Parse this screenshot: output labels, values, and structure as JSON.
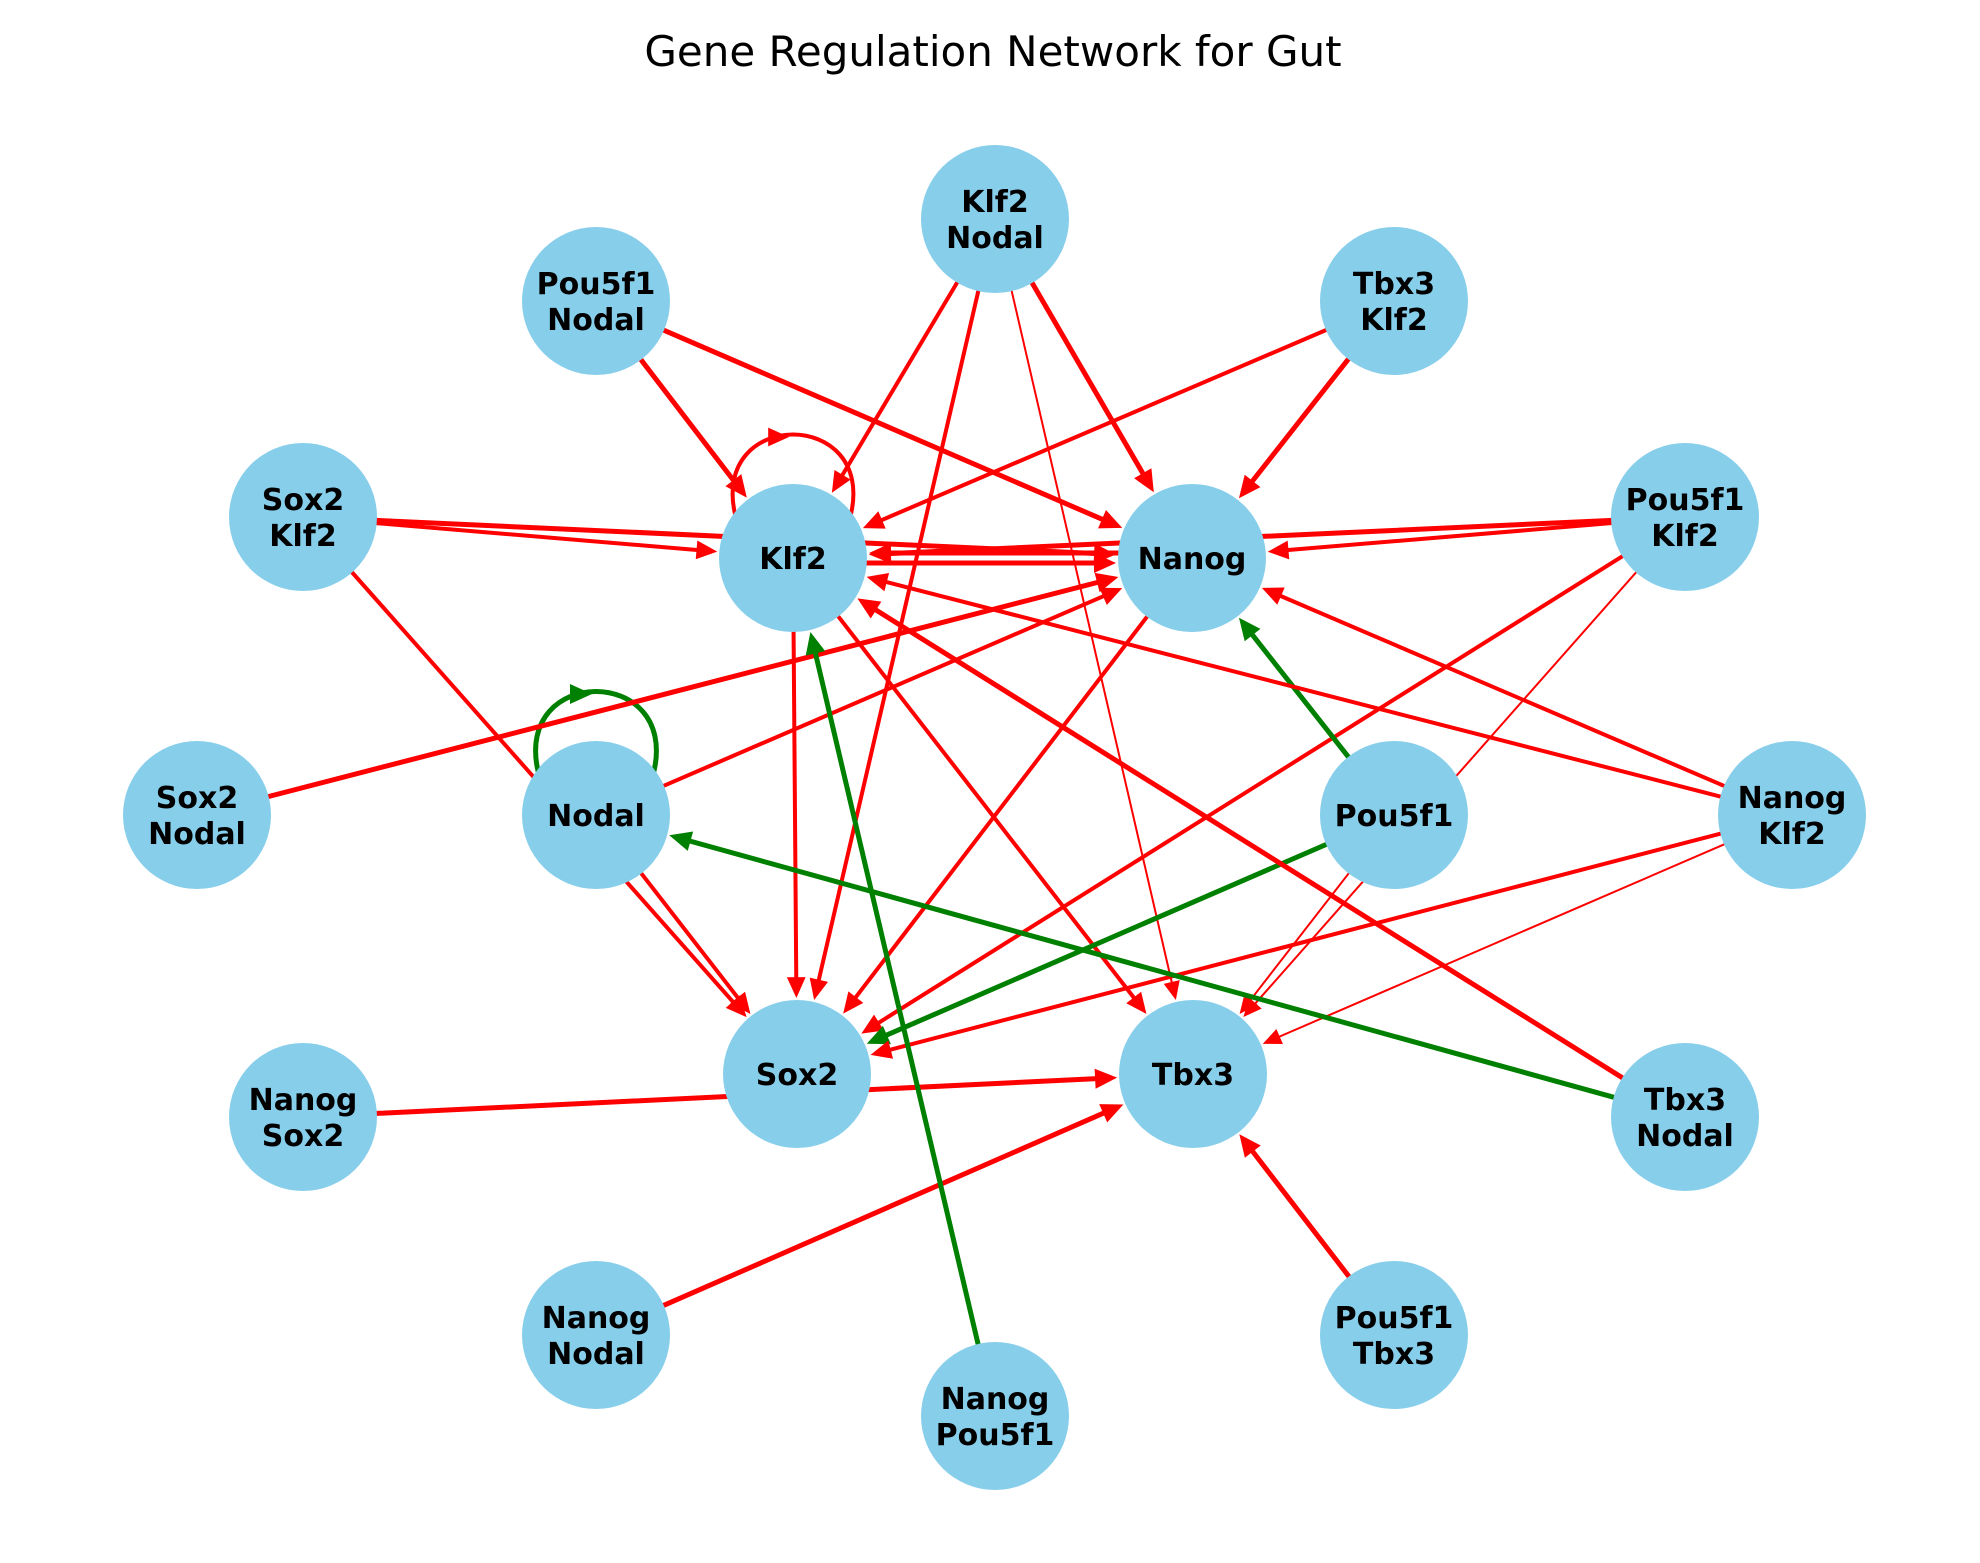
{
  "title": "Gene Regulation Network for Gut",
  "colors": {
    "node_fill": "#87ceeb",
    "activation": "#ff0000",
    "inhibition": "#008000",
    "background": "#ffffff"
  },
  "legend": {
    "activation_color": "red",
    "inhibition_color": "green"
  },
  "nodes": [
    {
      "id": "klf2",
      "lines": [
        "Klf2"
      ]
    },
    {
      "id": "nanog",
      "lines": [
        "Nanog"
      ]
    },
    {
      "id": "nodal",
      "lines": [
        "Nodal"
      ]
    },
    {
      "id": "pou5f1",
      "lines": [
        "Pou5f1"
      ]
    },
    {
      "id": "sox2",
      "lines": [
        "Sox2"
      ]
    },
    {
      "id": "tbx3",
      "lines": [
        "Tbx3"
      ]
    },
    {
      "id": "klf2_nodal",
      "lines": [
        "Klf2",
        "Nodal"
      ]
    },
    {
      "id": "pou5f1_nodal",
      "lines": [
        "Pou5f1",
        "Nodal"
      ]
    },
    {
      "id": "tbx3_klf2",
      "lines": [
        "Tbx3",
        "Klf2"
      ]
    },
    {
      "id": "sox2_klf2",
      "lines": [
        "Sox2",
        "Klf2"
      ]
    },
    {
      "id": "pou5f1_klf2",
      "lines": [
        "Pou5f1",
        "Klf2"
      ]
    },
    {
      "id": "sox2_nodal",
      "lines": [
        "Sox2",
        "Nodal"
      ]
    },
    {
      "id": "nanog_klf2",
      "lines": [
        "Nanog",
        "Klf2"
      ]
    },
    {
      "id": "nanog_sox2",
      "lines": [
        "Nanog",
        "Sox2"
      ]
    },
    {
      "id": "tbx3_nodal",
      "lines": [
        "Tbx3",
        "Nodal"
      ]
    },
    {
      "id": "nanog_nodal",
      "lines": [
        "Nanog",
        "Nodal"
      ]
    },
    {
      "id": "pou5f1_tbx3",
      "lines": [
        "Pou5f1",
        "Tbx3"
      ]
    },
    {
      "id": "nanog_pou5f1",
      "lines": [
        "Nanog",
        "Pou5f1"
      ]
    }
  ],
  "edges": [
    {
      "from": "klf2",
      "to": "klf2",
      "type": "activation",
      "weight": 4
    },
    {
      "from": "nodal",
      "to": "nodal",
      "type": "inhibition",
      "weight": 5
    },
    {
      "from": "klf2_nodal",
      "to": "klf2",
      "type": "activation",
      "weight": 4
    },
    {
      "from": "klf2_nodal",
      "to": "nanog",
      "type": "activation",
      "weight": 5
    },
    {
      "from": "klf2_nodal",
      "to": "sox2",
      "type": "activation",
      "weight": 4
    },
    {
      "from": "klf2_nodal",
      "to": "tbx3",
      "type": "activation",
      "weight": 2
    },
    {
      "from": "pou5f1_nodal",
      "to": "klf2",
      "type": "activation",
      "weight": 5
    },
    {
      "from": "pou5f1_nodal",
      "to": "nanog",
      "type": "activation",
      "weight": 5
    },
    {
      "from": "tbx3_klf2",
      "to": "klf2",
      "type": "activation",
      "weight": 4
    },
    {
      "from": "tbx3_klf2",
      "to": "nanog",
      "type": "activation",
      "weight": 5
    },
    {
      "from": "sox2_klf2",
      "to": "klf2",
      "type": "activation",
      "weight": 4
    },
    {
      "from": "sox2_klf2",
      "to": "nanog",
      "type": "activation",
      "weight": 5
    },
    {
      "from": "sox2_klf2",
      "to": "sox2",
      "type": "activation",
      "weight": 4
    },
    {
      "from": "pou5f1_klf2",
      "to": "klf2",
      "type": "activation",
      "weight": 5
    },
    {
      "from": "pou5f1_klf2",
      "to": "nanog",
      "type": "activation",
      "weight": 4
    },
    {
      "from": "pou5f1_klf2",
      "to": "sox2",
      "type": "activation",
      "weight": 4
    },
    {
      "from": "pou5f1_klf2",
      "to": "tbx3",
      "type": "activation",
      "weight": 2
    },
    {
      "from": "klf2",
      "to": "nanog",
      "type": "activation",
      "weight": 5
    },
    {
      "from": "nanog",
      "to": "klf2",
      "type": "activation",
      "weight": 5
    },
    {
      "from": "klf2",
      "to": "sox2",
      "type": "activation",
      "weight": 4
    },
    {
      "from": "klf2",
      "to": "tbx3",
      "type": "activation",
      "weight": 4
    },
    {
      "from": "nanog",
      "to": "sox2",
      "type": "activation",
      "weight": 4
    },
    {
      "from": "sox2_nodal",
      "to": "nanog",
      "type": "activation",
      "weight": 5
    },
    {
      "from": "nodal",
      "to": "nanog",
      "type": "activation",
      "weight": 4
    },
    {
      "from": "nodal",
      "to": "sox2",
      "type": "activation",
      "weight": 4
    },
    {
      "from": "pou5f1",
      "to": "nanog",
      "type": "inhibition",
      "weight": 5
    },
    {
      "from": "pou5f1",
      "to": "sox2",
      "type": "inhibition",
      "weight": 5
    },
    {
      "from": "pou5f1",
      "to": "tbx3",
      "type": "activation",
      "weight": 2
    },
    {
      "from": "nanog_klf2",
      "to": "klf2",
      "type": "activation",
      "weight": 4
    },
    {
      "from": "nanog_klf2",
      "to": "nanog",
      "type": "activation",
      "weight": 4
    },
    {
      "from": "nanog_klf2",
      "to": "sox2",
      "type": "activation",
      "weight": 4
    },
    {
      "from": "nanog_klf2",
      "to": "tbx3",
      "type": "activation",
      "weight": 2
    },
    {
      "from": "nanog_sox2",
      "to": "tbx3",
      "type": "activation",
      "weight": 5
    },
    {
      "from": "tbx3_nodal",
      "to": "klf2",
      "type": "activation",
      "weight": 5
    },
    {
      "from": "tbx3_nodal",
      "to": "nodal",
      "type": "inhibition",
      "weight": 5
    },
    {
      "from": "nanog_nodal",
      "to": "tbx3",
      "type": "activation",
      "weight": 5
    },
    {
      "from": "pou5f1_tbx3",
      "to": "tbx3",
      "type": "activation",
      "weight": 5
    },
    {
      "from": "nanog_pou5f1",
      "to": "klf2",
      "type": "inhibition",
      "weight": 5
    }
  ]
}
